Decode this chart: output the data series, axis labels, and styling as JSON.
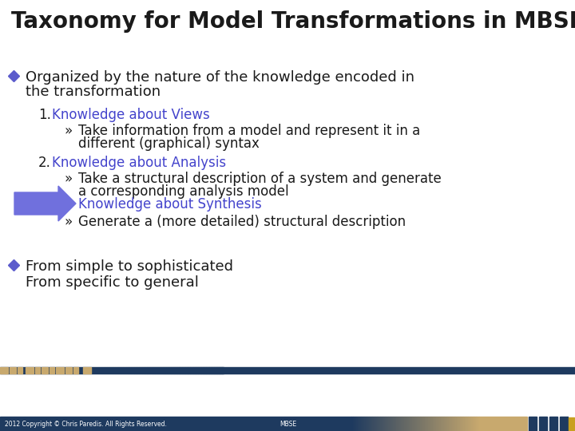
{
  "title": "Taxonomy for Model Transformations in MBSE",
  "title_color": "#1a1a1a",
  "title_fontsize": 20,
  "header_stripe_color1": "#1e3a5f",
  "header_stripe_color2": "#c8a96e",
  "bullet_diamond_color": "#5b5bcc",
  "blue_text_color": "#4444cc",
  "black_text_color": "#1a1a1a",
  "arrow_color": "#7070dd",
  "footer_bg_color": "#1e3a5f",
  "footer_gradient_color": "#8a7050",
  "footer_text": "2012 Copyright © Chris Paredis. All Rights Reserved.",
  "footer_center": "MBSE",
  "slide_bg": "#ffffff",
  "item1_title": "Knowledge about Views",
  "item1_sub1": "Take information from a model and represent it in a",
  "item1_sub2": "different (graphical) syntax",
  "item2_title": "Knowledge about Analysis",
  "item2_sub1": "Take a structural description of a system and generate",
  "item2_sub2": "a corresponding analysis model",
  "item3_title": "Knowledge about Synthesis",
  "item3_sub": "Generate a (more detailed) structural description",
  "bullet1_line1": "Organized by the nature of the knowledge encoded in",
  "bullet1_line2": "the transformation",
  "bullet2_line1": "From simple to sophisticated",
  "bullet2_line2": "From specific to general",
  "main_fontsize": 13,
  "sub_fontsize": 12,
  "item_title_fontsize": 12
}
